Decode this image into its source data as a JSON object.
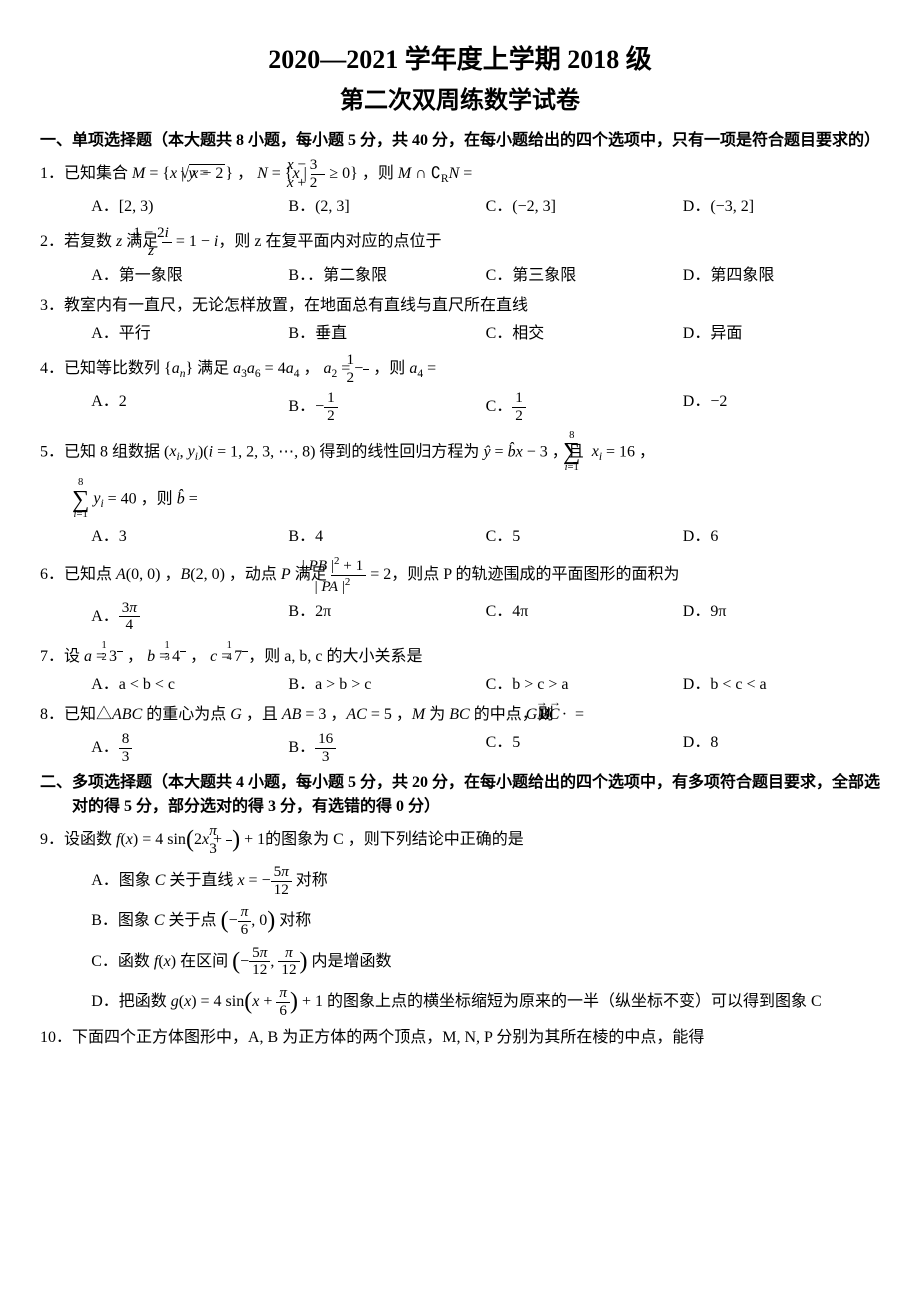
{
  "header": {
    "line1": "2020—2021 学年度上学期 2018 级",
    "line2": "第二次双周练数学试卷"
  },
  "section1": {
    "title": "一、单项选择题（本大题共 8 小题，每小题 5 分，共 40 分，在每小题给出的四个选项中，只有一项是符合题目要求的）"
  },
  "q1": {
    "opts": {
      "A": "A．[2, 3)",
      "B": "B．(2, 3]",
      "C": "C．(−2, 3]",
      "D": "D．(−3, 2]"
    }
  },
  "q2": {
    "tail": "，则 z 在复平面内对应的点位于",
    "opts": {
      "A": "A．第一象限",
      "B": "B．．第二象限",
      "C": "C．第三象限",
      "D": "D．第四象限"
    }
  },
  "q3": {
    "stem": "3．教室内有一直尺，无论怎样放置，在地面总有直线与直尺所在直线",
    "opts": {
      "A": "A．平行",
      "B": "B．垂直",
      "C": "C．相交",
      "D": "D．异面"
    }
  },
  "q4": {
    "opts": {
      "A": "A．2",
      "D": "D．−2"
    }
  },
  "q5": {
    "opts": {
      "A": "A．3",
      "B": "B．4",
      "C": "C．5",
      "D": "D．6"
    }
  },
  "q6": {
    "tail": "，则点 P 的轨迹围成的平面图形的面积为",
    "opts": {
      "B": "B．2π",
      "C": "C．4π",
      "D": "D．9π"
    }
  },
  "q7": {
    "tail": "，则 a, b, c 的大小关系是",
    "opts": {
      "A": "A．a < b < c",
      "B": "B．a > b > c",
      "C": "C．b > c > a",
      "D": "D．b < c < a"
    }
  },
  "q8": {
    "opts": {
      "C": "C．5",
      "D": "D．8"
    }
  },
  "section2": {
    "title": "二、多项选择题（本大题共 4 小题，每小题 5 分，共 20 分，在每小题给出的四个选项中，有多项符合题目要求，全部选对的得 5 分，部分选对的得 3 分，有选错的得 0 分）"
  },
  "q9": {
    "tail": "的图象为 C ，则下列结论中正确的是",
    "optC_tail": "内是增函数",
    "optD_tail": "的图象上点的横坐标缩短为原来的一半（纵坐标不变）可以得到图象 C"
  },
  "q10": {
    "stem": "10．下面四个正方体图形中，A, B 为正方体的两个顶点，M, N, P 分别为其所在棱的中点，能得"
  }
}
